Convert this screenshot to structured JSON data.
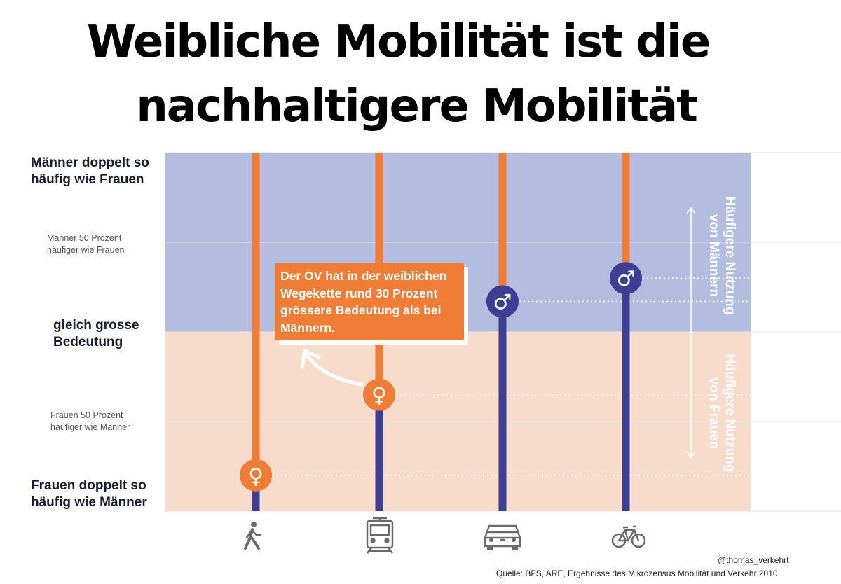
{
  "title": {
    "line1": "Weibliche Mobilität ist die",
    "line2": "nachhaltigere Mobilität"
  },
  "chart_data": {
    "type": "dot",
    "categories": [
      "walk-icon",
      "train-icon",
      "car-icon",
      "bicycle-icon"
    ],
    "series": [
      {
        "symbol": "♀",
        "values": [
          -0.8,
          -0.35,
          null,
          null
        ]
      },
      {
        "symbol": "♂",
        "values": [
          null,
          null,
          0.17,
          0.3
        ]
      }
    ],
    "ylim": [
      -1,
      1
    ],
    "y_tick_labels": {
      "top": [
        "Männer doppelt so",
        "häufig wie Frauen"
      ],
      "upper_mid": [
        "Männer 50 Prozent",
        "häufiger wie Frauen"
      ],
      "center": [
        "gleich grosse",
        "Bedeutung"
      ],
      "lower_mid": [
        "Frauen 50 Prozent",
        "häufiger wie Männer"
      ],
      "bottom": [
        "Frauen doppelt so",
        "häufig wie Männer"
      ]
    },
    "region_labels": {
      "upper": [
        "Häufigere Nutzung",
        "von Männern"
      ],
      "lower": [
        "Häufigere Nutzung",
        "von Frauen"
      ]
    },
    "annotation": [
      "Der ÖV hat in der weiblichen",
      "Wegekette rund 30 Prozent",
      "grössere Bedeutung als bei",
      "Männern."
    ],
    "colors": {
      "men_region": "#b3bde0",
      "women_region": "#f7dccb",
      "orange": "#ef7d35",
      "blue": "#3c3f93",
      "icon": "#6a6a6a"
    }
  },
  "footer": {
    "credit": "@thomas_verkehrt",
    "source": "Quelle:  BFS, ARE, Ergebnisse des Mikrozensus Mobilität und Verkehr 2010"
  }
}
